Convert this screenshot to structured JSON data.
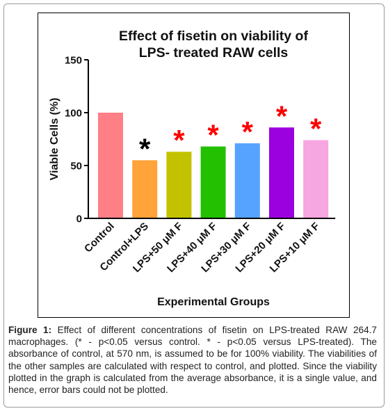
{
  "chart_data": {
    "type": "bar",
    "title_line1": "Effect of fisetin on viability of",
    "title_line2": "LPS- treated RAW cells",
    "xlabel": "Experimental Groups",
    "ylabel": "Viable Cells (%)",
    "ylim": [
      0,
      150
    ],
    "yticks": [
      0,
      50,
      100,
      150
    ],
    "categories": [
      "Control",
      "Control+LPS",
      "LPS+50 μM F",
      "LPS+40 μM F",
      "LPS+30 μM F",
      "LPS+20 μM F",
      "LPS+10 μM F"
    ],
    "values": [
      100,
      55,
      63,
      68,
      71,
      86,
      74
    ],
    "colors": [
      "#ff7f86",
      "#ffa33a",
      "#c2c200",
      "#22c000",
      "#56a2ff",
      "#9b00df",
      "#f6a6e0"
    ],
    "markers": [
      "",
      "*",
      "*",
      "*",
      "*",
      "*",
      "*"
    ],
    "marker_colors": [
      "",
      "#000000",
      "#ff0000",
      "#ff0000",
      "#ff0000",
      "#ff0000",
      "#ff0000"
    ]
  },
  "caption": {
    "label": "Figure 1:",
    "text": " Effect of different concentrations of fisetin on LPS-treated RAW 264.7 macrophages. (* - p<0.05 versus control. * - p<0.05 versus LPS-treated). The absorbance of control, at 570 nm, is assumed to be for 100% viability. The viabilities of the other samples are calculated with respect to control, and plotted. Since the viability plotted in the graph is calculated from the average absorbance, it is a single value, and hence, error bars could not be plotted."
  }
}
